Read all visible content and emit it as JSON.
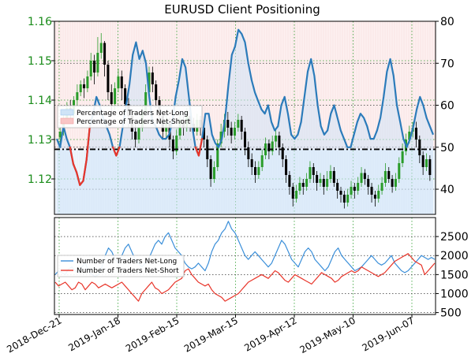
{
  "chart_data": {
    "title": "EURUSD Client Positioning",
    "x_labels": [
      "2018-Dec-21",
      "2019-Jan-18",
      "2019-Feb-15",
      "2019-Mar-15",
      "2019-Apr-12",
      "2019-May-10",
      "2019-Jun-07"
    ],
    "top_panel": {
      "type": "candlestick+line",
      "price_axis": {
        "ticks": [
          1.12,
          1.13,
          1.14,
          1.15,
          1.16
        ],
        "range": [
          1.111,
          1.16
        ]
      },
      "pct_axis": {
        "ticks": [
          40,
          50,
          60,
          70,
          80
        ],
        "range": [
          34,
          80
        ]
      },
      "reference_line": 49.5,
      "legend": [
        "Percentage of Traders Net-Long",
        "Percentage of Traders Net-Short"
      ],
      "series": [
        {
          "name": "Percentage of Traders Net-Long",
          "color": "#2b7bba",
          "values": [
            52,
            50,
            55,
            52,
            50,
            46,
            44,
            41,
            42,
            47,
            55,
            58,
            62,
            60,
            57,
            55,
            53,
            50,
            48,
            50,
            55,
            60,
            65,
            72,
            75,
            71,
            73,
            70,
            62,
            56,
            55,
            53,
            52,
            52,
            53,
            56,
            62,
            66,
            71,
            69,
            62,
            55,
            50,
            48,
            52,
            58,
            58,
            53,
            51,
            50,
            52,
            57,
            65,
            72,
            74,
            78,
            77,
            75,
            70,
            66,
            63,
            61,
            59,
            58,
            60,
            56,
            54,
            55,
            60,
            62,
            58,
            53,
            52,
            53,
            56,
            62,
            68,
            71,
            67,
            60,
            55,
            53,
            54,
            58,
            60,
            57,
            54,
            52,
            50,
            50,
            53,
            56,
            58,
            57,
            55,
            52,
            52,
            54,
            57,
            62,
            68,
            71,
            67,
            60,
            56,
            52,
            50,
            52,
            55,
            59,
            62,
            60,
            57,
            55,
            53
          ]
        },
        {
          "name": "Percentage of Traders Net-Short",
          "color": "#e8352a",
          "rendering": "drawn where net-long is below the reference line"
        }
      ],
      "candles": [
        [
          1.1305,
          1.132,
          1.129,
          1.133
        ],
        [
          1.132,
          1.135,
          1.131,
          1.1365
        ],
        [
          1.135,
          1.138,
          1.134,
          1.1395
        ],
        [
          1.138,
          1.1365,
          1.135,
          1.14
        ],
        [
          1.1365,
          1.14,
          1.1355,
          1.141
        ],
        [
          1.14,
          1.142,
          1.1385,
          1.144
        ],
        [
          1.142,
          1.144,
          1.141,
          1.145
        ],
        [
          1.144,
          1.143,
          1.1405,
          1.1455
        ],
        [
          1.143,
          1.146,
          1.142,
          1.1475
        ],
        [
          1.146,
          1.15,
          1.145,
          1.152
        ],
        [
          1.15,
          1.147,
          1.144,
          1.1515
        ],
        [
          1.147,
          1.152,
          1.146,
          1.156
        ],
        [
          1.152,
          1.1545,
          1.1505,
          1.157
        ],
        [
          1.1545,
          1.149,
          1.146,
          1.155
        ],
        [
          1.149,
          1.142,
          1.14,
          1.15
        ],
        [
          1.142,
          1.139,
          1.136,
          1.144
        ],
        [
          1.139,
          1.143,
          1.1375,
          1.1445
        ],
        [
          1.143,
          1.146,
          1.142,
          1.148
        ],
        [
          1.146,
          1.143,
          1.14,
          1.1475
        ],
        [
          1.143,
          1.139,
          1.137,
          1.144
        ],
        [
          1.139,
          1.136,
          1.133,
          1.1405
        ],
        [
          1.136,
          1.132,
          1.13,
          1.137
        ],
        [
          1.132,
          1.13,
          1.128,
          1.134
        ],
        [
          1.13,
          1.133,
          1.129,
          1.135
        ],
        [
          1.133,
          1.137,
          1.132,
          1.1385
        ],
        [
          1.137,
          1.142,
          1.136,
          1.144
        ],
        [
          1.142,
          1.147,
          1.1405,
          1.1485
        ],
        [
          1.147,
          1.144,
          1.142,
          1.1485
        ],
        [
          1.144,
          1.14,
          1.138,
          1.145
        ],
        [
          1.14,
          1.136,
          1.134,
          1.141
        ],
        [
          1.136,
          1.132,
          1.13,
          1.137
        ],
        [
          1.132,
          1.134,
          1.13,
          1.136
        ],
        [
          1.134,
          1.13,
          1.128,
          1.1355
        ],
        [
          1.13,
          1.127,
          1.125,
          1.131
        ],
        [
          1.127,
          1.131,
          1.126,
          1.1325
        ],
        [
          1.131,
          1.135,
          1.13,
          1.1365
        ],
        [
          1.135,
          1.133,
          1.131,
          1.137
        ],
        [
          1.133,
          1.136,
          1.132,
          1.138
        ],
        [
          1.136,
          1.134,
          1.132,
          1.1375
        ],
        [
          1.134,
          1.132,
          1.13,
          1.1355
        ],
        [
          1.132,
          1.135,
          1.131,
          1.1365
        ],
        [
          1.135,
          1.133,
          1.131,
          1.136
        ],
        [
          1.133,
          1.13,
          1.128,
          1.1345
        ],
        [
          1.13,
          1.125,
          1.123,
          1.131
        ],
        [
          1.125,
          1.12,
          1.118,
          1.126
        ],
        [
          1.12,
          1.123,
          1.119,
          1.1245
        ],
        [
          1.123,
          1.129,
          1.122,
          1.13
        ],
        [
          1.129,
          1.132,
          1.128,
          1.134
        ],
        [
          1.132,
          1.135,
          1.1305,
          1.1365
        ],
        [
          1.135,
          1.133,
          1.131,
          1.137
        ],
        [
          1.133,
          1.131,
          1.129,
          1.1345
        ],
        [
          1.131,
          1.133,
          1.13,
          1.1345
        ],
        [
          1.133,
          1.135,
          1.132,
          1.1365
        ],
        [
          1.135,
          1.132,
          1.13,
          1.136
        ],
        [
          1.132,
          1.128,
          1.126,
          1.133
        ],
        [
          1.128,
          1.125,
          1.123,
          1.1295
        ],
        [
          1.125,
          1.123,
          1.121,
          1.1265
        ],
        [
          1.123,
          1.121,
          1.119,
          1.1245
        ],
        [
          1.121,
          1.123,
          1.12,
          1.1245
        ],
        [
          1.123,
          1.126,
          1.122,
          1.1275
        ],
        [
          1.126,
          1.129,
          1.125,
          1.1305
        ],
        [
          1.129,
          1.127,
          1.125,
          1.13
        ],
        [
          1.127,
          1.1295,
          1.126,
          1.131
        ],
        [
          1.1295,
          1.131,
          1.128,
          1.1325
        ],
        [
          1.131,
          1.128,
          1.126,
          1.132
        ],
        [
          1.128,
          1.125,
          1.123,
          1.129
        ],
        [
          1.125,
          1.121,
          1.119,
          1.126
        ],
        [
          1.121,
          1.118,
          1.116,
          1.122
        ],
        [
          1.118,
          1.115,
          1.113,
          1.119
        ],
        [
          1.115,
          1.117,
          1.114,
          1.1185
        ],
        [
          1.117,
          1.119,
          1.116,
          1.1205
        ],
        [
          1.119,
          1.118,
          1.116,
          1.12
        ],
        [
          1.118,
          1.12,
          1.117,
          1.1215
        ],
        [
          1.12,
          1.123,
          1.119,
          1.1245
        ],
        [
          1.123,
          1.121,
          1.119,
          1.124
        ],
        [
          1.121,
          1.119,
          1.117,
          1.122
        ],
        [
          1.119,
          1.12,
          1.118,
          1.1215
        ],
        [
          1.12,
          1.118,
          1.116,
          1.121
        ],
        [
          1.118,
          1.12,
          1.117,
          1.122
        ],
        [
          1.12,
          1.122,
          1.119,
          1.1235
        ],
        [
          1.122,
          1.119,
          1.118,
          1.123
        ],
        [
          1.119,
          1.117,
          1.115,
          1.12
        ],
        [
          1.117,
          1.116,
          1.114,
          1.118
        ],
        [
          1.116,
          1.114,
          1.1125,
          1.117
        ],
        [
          1.114,
          1.116,
          1.113,
          1.1175
        ],
        [
          1.116,
          1.118,
          1.115,
          1.1195
        ],
        [
          1.118,
          1.117,
          1.115,
          1.119
        ],
        [
          1.117,
          1.119,
          1.116,
          1.1205
        ],
        [
          1.119,
          1.1215,
          1.118,
          1.123
        ],
        [
          1.1215,
          1.12,
          1.1185,
          1.1225
        ],
        [
          1.12,
          1.118,
          1.116,
          1.121
        ],
        [
          1.118,
          1.116,
          1.114,
          1.119
        ],
        [
          1.116,
          1.115,
          1.113,
          1.117
        ],
        [
          1.115,
          1.117,
          1.114,
          1.1185
        ],
        [
          1.117,
          1.119,
          1.116,
          1.1205
        ],
        [
          1.119,
          1.122,
          1.118,
          1.124
        ],
        [
          1.122,
          1.12,
          1.119,
          1.123
        ],
        [
          1.12,
          1.118,
          1.1165,
          1.121
        ],
        [
          1.118,
          1.12,
          1.117,
          1.1215
        ],
        [
          1.12,
          1.124,
          1.119,
          1.1255
        ],
        [
          1.124,
          1.127,
          1.123,
          1.129
        ],
        [
          1.127,
          1.13,
          1.126,
          1.1315
        ],
        [
          1.13,
          1.132,
          1.129,
          1.1335
        ],
        [
          1.132,
          1.133,
          1.1305,
          1.1345
        ],
        [
          1.133,
          1.13,
          1.128,
          1.1345
        ],
        [
          1.13,
          1.126,
          1.124,
          1.131
        ],
        [
          1.126,
          1.123,
          1.121,
          1.127
        ],
        [
          1.123,
          1.125,
          1.122,
          1.1265
        ],
        [
          1.125,
          1.121,
          1.1195,
          1.126
        ]
      ]
    },
    "bottom_panel": {
      "type": "line",
      "y_axis": {
        "ticks": [
          500,
          1000,
          1500,
          2000,
          2500
        ],
        "range": [
          450,
          3000
        ]
      },
      "legend": [
        "Number of Traders Net-Long",
        "Number of Traders Net-Short"
      ],
      "series": [
        {
          "name": "Number of Traders Net-Long",
          "color": "#3b8fd9",
          "values": [
            1500,
            1600,
            1550,
            1500,
            1650,
            1700,
            1600,
            1550,
            1700,
            1800,
            1600,
            1500,
            1450,
            1500,
            1700,
            2000,
            2200,
            2100,
            1900,
            1800,
            2000,
            2200,
            2300,
            2100,
            1900,
            1800,
            1700,
            1800,
            1900,
            2100,
            2300,
            2400,
            2300,
            2500,
            2600,
            2400,
            2200,
            2100,
            2000,
            1800,
            1700,
            1650,
            1700,
            1800,
            1700,
            1600,
            1800,
            2100,
            2300,
            2400,
            2600,
            2700,
            2900,
            2700,
            2600,
            2400,
            2200,
            2000,
            1900,
            2000,
            2100,
            2000,
            1900,
            1800,
            1700,
            1800,
            2000,
            2200,
            2400,
            2300,
            2100,
            1900,
            1800,
            1700,
            1900,
            2100,
            2200,
            2100,
            1900,
            1800,
            1700,
            1600,
            1700,
            1900,
            2100,
            2200,
            2000,
            1900,
            1800,
            1700,
            1600,
            1650,
            1700,
            1800,
            1900,
            2000,
            1900,
            1800,
            1750,
            1800,
            1900,
            2000,
            1800,
            1700,
            1600,
            1550,
            1600,
            1700,
            1800,
            1900,
            2000,
            1950,
            1900,
            1950,
            1900
          ]
        },
        {
          "name": "Number of Traders Net-Short",
          "color": "#e8352a",
          "values": [
            1300,
            1200,
            1250,
            1300,
            1200,
            1100,
            1150,
            1300,
            1250,
            1100,
            1200,
            1300,
            1250,
            1150,
            1200,
            1250,
            1200,
            1150,
            1200,
            1250,
            1300,
            1200,
            1100,
            1000,
            900,
            800,
            1000,
            1100,
            1200,
            1300,
            1150,
            1100,
            1000,
            1050,
            1100,
            1200,
            1300,
            1350,
            1400,
            1600,
            1650,
            1500,
            1400,
            1300,
            1250,
            1200,
            1250,
            1100,
            1000,
            950,
            900,
            800,
            850,
            900,
            950,
            1000,
            1100,
            1200,
            1300,
            1350,
            1400,
            1450,
            1500,
            1450,
            1400,
            1500,
            1600,
            1550,
            1450,
            1350,
            1300,
            1400,
            1500,
            1450,
            1400,
            1350,
            1300,
            1250,
            1350,
            1450,
            1550,
            1500,
            1450,
            1400,
            1300,
            1350,
            1450,
            1500,
            1550,
            1600,
            1550,
            1600,
            1700,
            1650,
            1600,
            1550,
            1500,
            1450,
            1500,
            1550,
            1650,
            1750,
            1850,
            1900,
            1950,
            2000,
            2050,
            1950,
            1850,
            1800,
            1750,
            1500,
            1600,
            1700,
            1800
          ]
        }
      ]
    }
  }
}
